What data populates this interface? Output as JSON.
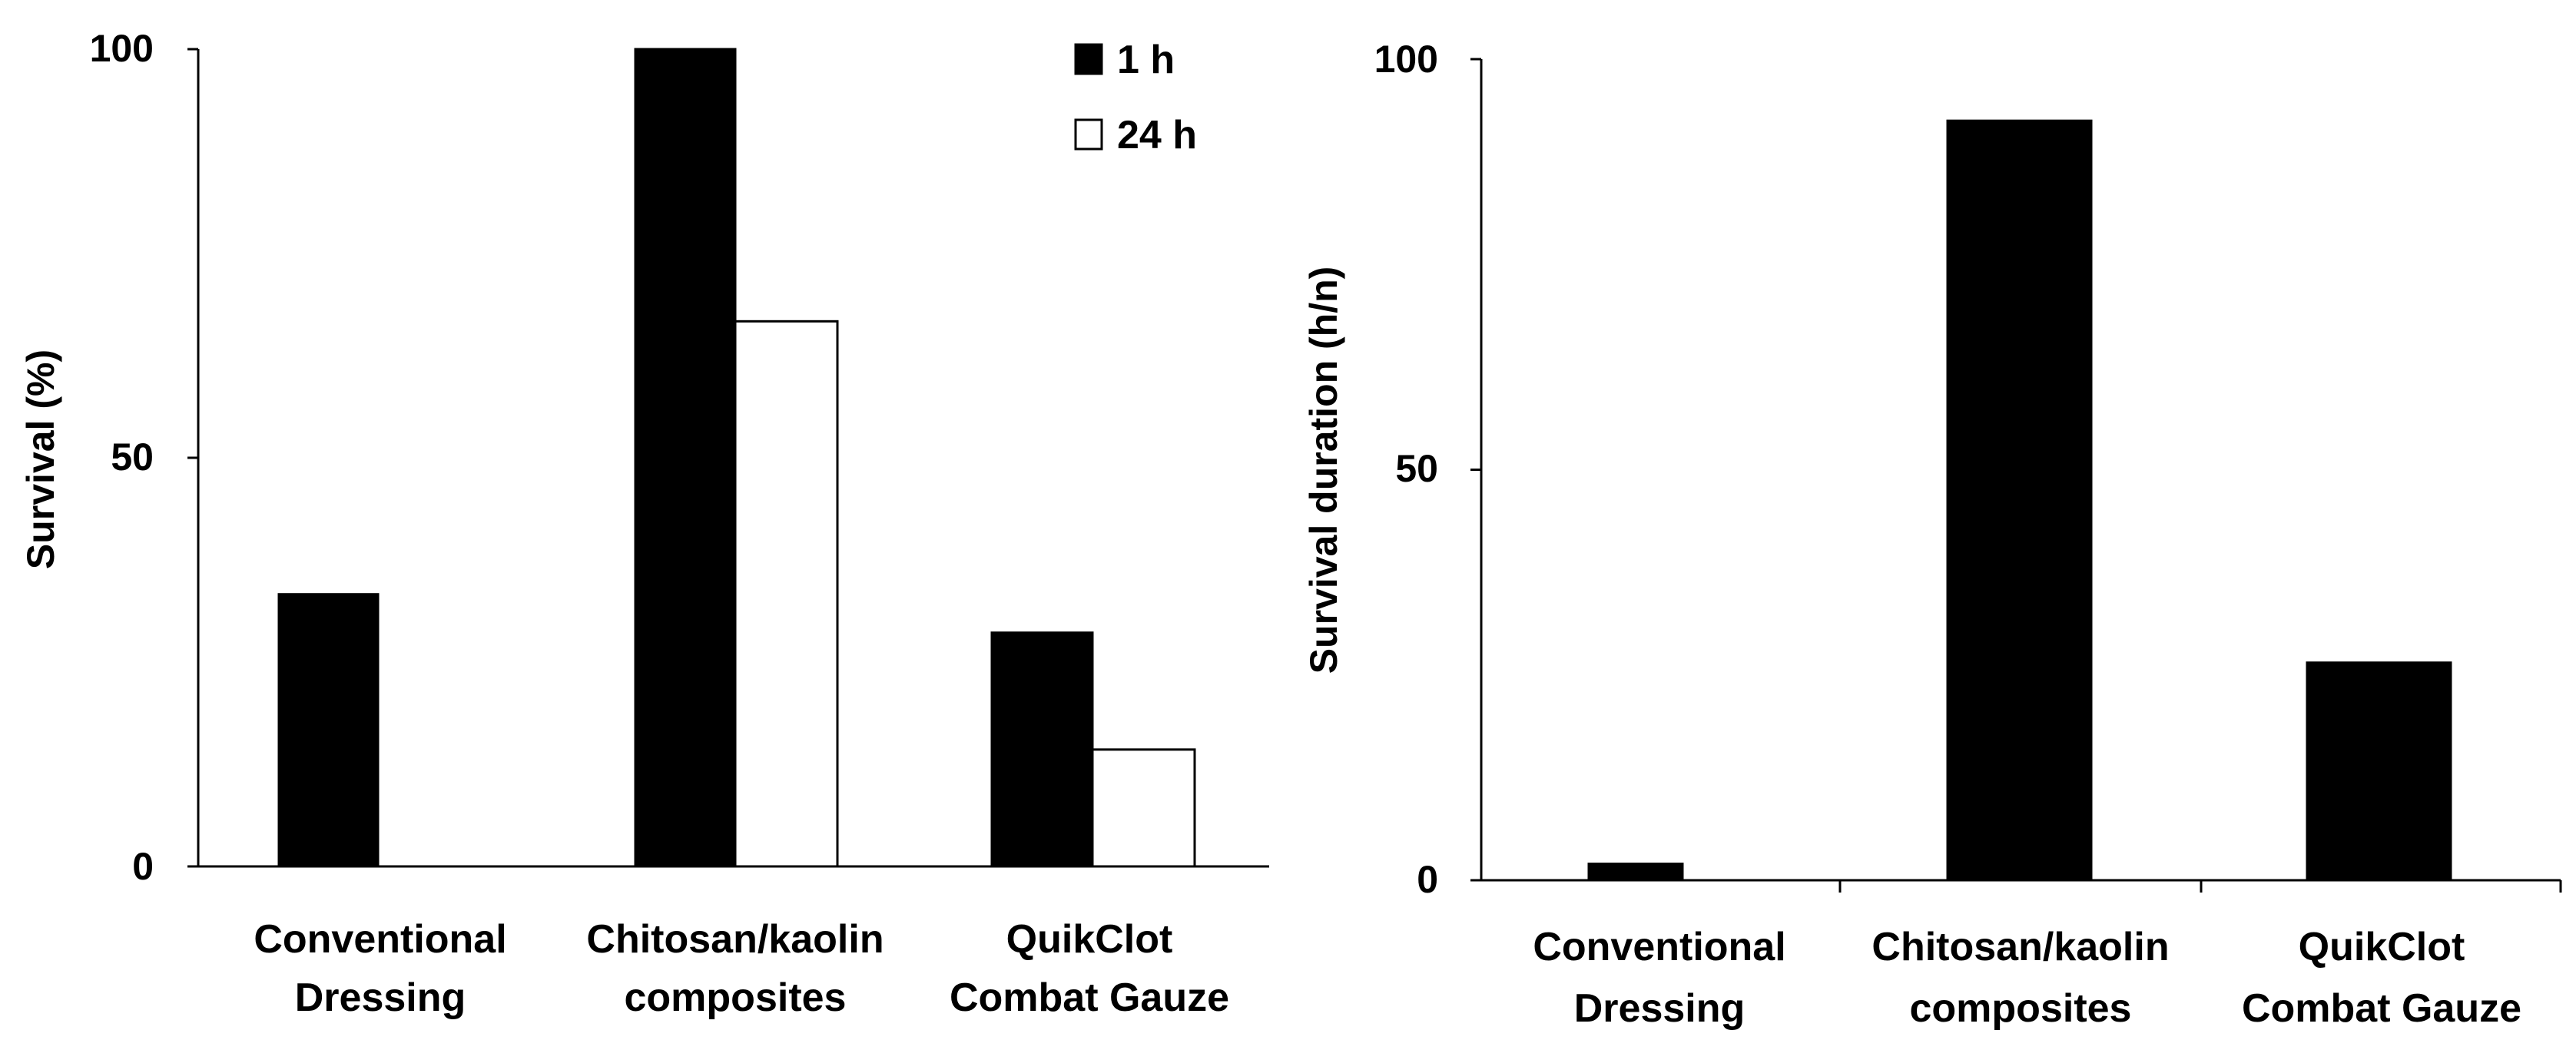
{
  "chart_data": [
    {
      "type": "bar",
      "title": "",
      "xlabel": "",
      "ylabel": "Survival (%)",
      "ylim": [
        0,
        100
      ],
      "yticks": [
        "0",
        "50",
        "100"
      ],
      "categories": [
        [
          "Conventional",
          "Dressing"
        ],
        [
          "Chitosan/kaolin",
          "composites"
        ],
        [
          "QuikClot",
          "Combat Gauze"
        ]
      ],
      "series": [
        {
          "name": "1 h",
          "color": "#000000",
          "values": [
            33.3,
            100,
            28.6
          ]
        },
        {
          "name": "24 h",
          "color": "#ffffff",
          "values": [
            0,
            66.7,
            14.3
          ]
        }
      ],
      "legend": "top-right"
    },
    {
      "type": "bar",
      "title": "",
      "xlabel": "",
      "ylabel": "Survival duration (h/n)",
      "ylim": [
        0,
        100
      ],
      "yticks": [
        "0",
        "50",
        "100"
      ],
      "categories": [
        [
          "Conventional",
          "Dressing"
        ],
        [
          "Chitosan/kaolin",
          "composites"
        ],
        [
          "QuikClot",
          "Combat Gauze"
        ]
      ],
      "series": [
        {
          "name": "Survival duration",
          "color": "#000000",
          "values": [
            2,
            92.5,
            26.5
          ]
        }
      ]
    }
  ]
}
